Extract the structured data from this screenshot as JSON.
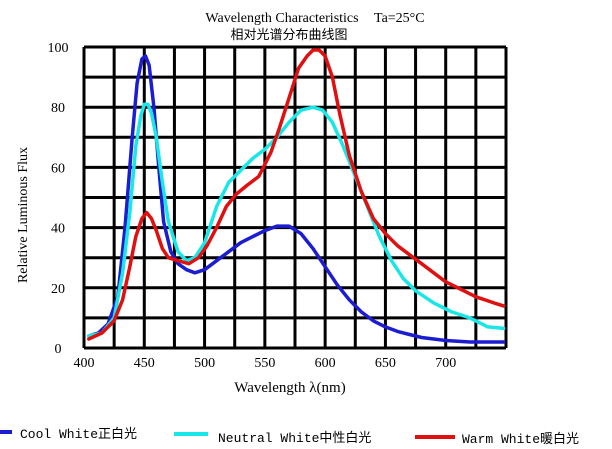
{
  "chart_data": {
    "type": "line",
    "title": "Wavelength Characteristics",
    "title_condition": "Ta=25°C",
    "subtitle": "相对光谱分布曲线图",
    "xlabel": "Wavelength λ(nm)",
    "ylabel": "Relative Luminous Flux",
    "xlim": [
      400,
      750
    ],
    "ylim": [
      0,
      100
    ],
    "x_ticks": [
      "400",
      "450",
      "500",
      "550",
      "600",
      "650",
      "700"
    ],
    "y_ticks": [
      "0",
      "20",
      "40",
      "60",
      "80",
      "100"
    ],
    "grid": true,
    "legend_position": "bottom",
    "series": [
      {
        "name": "Cool White正白光",
        "color": "#1c1cd0",
        "x": [
          404,
          412,
          420,
          428,
          434,
          440,
          444,
          448,
          451,
          454,
          458,
          462,
          466,
          472,
          478,
          485,
          492,
          500,
          510,
          520,
          530,
          540,
          550,
          560,
          570,
          580,
          590,
          600,
          610,
          620,
          630,
          640,
          650,
          660,
          670,
          680,
          690,
          700,
          720,
          740,
          748
        ],
        "y": [
          4,
          5,
          8,
          17,
          40,
          70,
          88,
          96,
          97,
          94,
          80,
          60,
          42,
          32,
          28,
          26,
          25,
          26,
          29,
          32,
          35,
          37,
          39,
          40.5,
          40.5,
          38,
          33,
          27,
          21,
          16,
          12,
          9,
          7,
          5.5,
          4.5,
          3.5,
          3,
          2.5,
          2,
          2,
          2
        ]
      },
      {
        "name": "Neutral White中性白光",
        "color": "#19e6e6",
        "x": [
          404,
          415,
          425,
          432,
          438,
          443,
          447,
          450,
          453,
          456,
          460,
          465,
          470,
          478,
          485,
          492,
          500,
          510,
          520,
          530,
          540,
          550,
          560,
          570,
          580,
          590,
          598,
          606,
          615,
          625,
          635,
          645,
          655,
          665,
          675,
          690,
          705,
          720,
          735,
          748
        ],
        "y": [
          4,
          5,
          10,
          25,
          45,
          67,
          77,
          81,
          81,
          78,
          70,
          55,
          42,
          32,
          29,
          30,
          35,
          47,
          55,
          59,
          63,
          66,
          70,
          75,
          79,
          80,
          79,
          75,
          67,
          57,
          47,
          37,
          29,
          23,
          19,
          15,
          12,
          10,
          7,
          6.5
        ]
      },
      {
        "name": "Warm White暖白光",
        "color": "#e01010",
        "x": [
          404,
          415,
          425,
          432,
          438,
          443,
          448,
          452,
          456,
          460,
          465,
          470,
          478,
          487,
          495,
          502,
          510,
          518,
          526,
          535,
          545,
          555,
          562,
          570,
          578,
          585,
          590,
          595,
          600,
          606,
          612,
          620,
          630,
          640,
          650,
          660,
          670,
          680,
          690,
          700,
          710,
          725,
          740,
          748
        ],
        "y": [
          3,
          5,
          9,
          16,
          27,
          37,
          43,
          45,
          43,
          39,
          33,
          30,
          29,
          28,
          30,
          34,
          40,
          47,
          51,
          54,
          57,
          65,
          73,
          83,
          93,
          97,
          99,
          99,
          97,
          90,
          78,
          64,
          52,
          43,
          38,
          34,
          31,
          28,
          25,
          22,
          20,
          17,
          15,
          14
        ]
      }
    ]
  }
}
